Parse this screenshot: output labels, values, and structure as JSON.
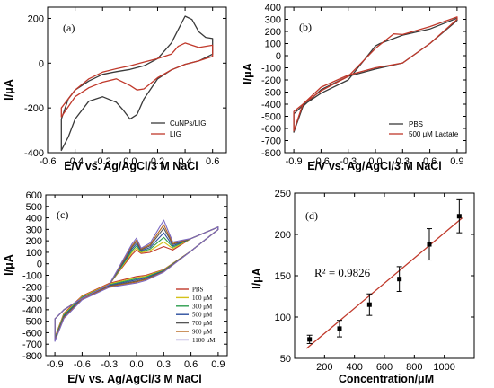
{
  "chart_data": [
    {
      "panel": "(a)",
      "type": "line",
      "xlabel": "E/V vs. Ag/AgCl/3 M NaCl",
      "ylabel": "I/μA",
      "xlim": [
        -0.6,
        0.7
      ],
      "ylim": [
        -400,
        250
      ],
      "xticks": [
        -0.6,
        -0.4,
        -0.2,
        0.0,
        0.2,
        0.4,
        0.6
      ],
      "xtick_labels": [
        "-0.6",
        "-0.4",
        "-0.2",
        "0.0",
        "0.2",
        "0.4",
        "0.6"
      ],
      "yticks": [
        -400,
        -200,
        0,
        200
      ],
      "ytick_labels": [
        "-400",
        "-200",
        "0",
        "200"
      ],
      "legend_position": "bottom-right",
      "series": [
        {
          "name": "CuNPs/LIG",
          "color": "#3a3a3a",
          "x": [
            -0.5,
            -0.45,
            -0.4,
            -0.3,
            -0.2,
            -0.1,
            0.0,
            0.1,
            0.2,
            0.3,
            0.35,
            0.4,
            0.45,
            0.5,
            0.55,
            0.6,
            0.6,
            0.5,
            0.4,
            0.3,
            0.2,
            0.1,
            0.05,
            0.0,
            -0.05,
            -0.1,
            -0.2,
            -0.3,
            -0.4,
            -0.45,
            -0.5
          ],
          "y": [
            -250,
            -160,
            -120,
            -80,
            -50,
            -38,
            -28,
            -12,
            20,
            90,
            150,
            210,
            195,
            140,
            115,
            110,
            40,
            10,
            -5,
            -30,
            -70,
            -160,
            -230,
            -250,
            -210,
            -175,
            -150,
            -170,
            -250,
            -330,
            -390
          ]
        },
        {
          "name": "LIG",
          "color": "#c0392b",
          "x": [
            -0.5,
            -0.4,
            -0.3,
            -0.2,
            -0.1,
            0.0,
            0.1,
            0.2,
            0.3,
            0.35,
            0.4,
            0.5,
            0.6,
            0.6,
            0.5,
            0.4,
            0.3,
            0.2,
            0.1,
            0.05,
            0.0,
            -0.1,
            -0.2,
            -0.3,
            -0.4,
            -0.5
          ],
          "y": [
            -200,
            -120,
            -70,
            -40,
            -25,
            -12,
            5,
            20,
            40,
            75,
            90,
            70,
            80,
            30,
            10,
            -5,
            -30,
            -65,
            -115,
            -120,
            -100,
            -70,
            -85,
            -110,
            -150,
            -240
          ]
        }
      ]
    },
    {
      "panel": "(b)",
      "type": "line",
      "xlabel": "E/V vs. Ag/AgCl/3 M NaCl",
      "ylabel": "I/μA",
      "xlim": [
        -1.0,
        1.0
      ],
      "ylim": [
        -800,
        400
      ],
      "xticks": [
        -0.9,
        -0.6,
        -0.3,
        0.0,
        0.3,
        0.6,
        0.9
      ],
      "xtick_labels": [
        "-0.9",
        "-0.6",
        "-0.3",
        "0.0",
        "0.3",
        "0.6",
        "0.9"
      ],
      "yticks": [
        -800,
        -700,
        -600,
        -500,
        -400,
        -300,
        -200,
        -100,
        0,
        100,
        200,
        300,
        400
      ],
      "ytick_labels": [
        "-800",
        "-700",
        "-600",
        "-500",
        "-400",
        "-300",
        "-200",
        "-100",
        "0",
        "100",
        "200",
        "300",
        "400"
      ],
      "legend_position": "bottom-right",
      "series": [
        {
          "name": "PBS",
          "color": "#3a3a3a",
          "x": [
            -0.9,
            -0.8,
            -0.6,
            -0.3,
            0.0,
            0.05,
            0.3,
            0.6,
            0.9,
            0.9,
            0.6,
            0.3,
            0.0,
            -0.3,
            -0.6,
            -0.8,
            -0.9
          ],
          "y": [
            -480,
            -410,
            -310,
            -200,
            80,
            100,
            170,
            220,
            310,
            290,
            100,
            -60,
            -110,
            -170,
            -280,
            -420,
            -630
          ]
        },
        {
          "name": "500 μM Lactate",
          "color": "#c0392b",
          "x": [
            -0.9,
            -0.8,
            -0.6,
            -0.3,
            0.0,
            0.1,
            0.2,
            0.3,
            0.6,
            0.9,
            0.9,
            0.6,
            0.3,
            0.0,
            -0.3,
            -0.6,
            -0.8,
            -0.9
          ],
          "y": [
            -460,
            -400,
            -290,
            -170,
            60,
            120,
            180,
            175,
            240,
            320,
            300,
            100,
            -60,
            -100,
            -160,
            -260,
            -400,
            -620
          ]
        }
      ]
    },
    {
      "panel": "(c)",
      "type": "line",
      "xlabel": "E/V vs. Ag/AgCl/3 M NaCl",
      "ylabel": "I/μA",
      "xlim": [
        -1.0,
        1.0
      ],
      "ylim": [
        -800,
        600
      ],
      "xticks": [
        -0.9,
        -0.6,
        -0.3,
        0.0,
        0.3,
        0.6,
        0.9
      ],
      "xtick_labels": [
        "-0.9",
        "-0.6",
        "-0.3",
        "0.0",
        "0.3",
        "0.6",
        "0.9"
      ],
      "yticks": [
        -800,
        -700,
        -600,
        -500,
        -400,
        -300,
        -200,
        -100,
        0,
        100,
        200,
        300,
        400,
        500,
        600
      ],
      "ytick_labels": [
        "-800",
        "-700",
        "-600",
        "-500",
        "-400",
        "-300",
        "-200",
        "-100",
        "0",
        "100",
        "200",
        "300",
        "400",
        "500",
        "600"
      ],
      "legend_position": "bottom-right",
      "series": [
        {
          "name": "PBS",
          "color": "#c0392b",
          "peak": 0
        },
        {
          "name": "100 μM",
          "color": "#d4c21a",
          "peak": 40
        },
        {
          "name": "300 μM",
          "color": "#2e9e4f",
          "peak": 80
        },
        {
          "name": "500 μM",
          "color": "#2c4f9e",
          "peak": 120
        },
        {
          "name": "700 μM",
          "color": "#555555",
          "peak": 160
        },
        {
          "name": "900 μM",
          "color": "#b5651d",
          "peak": 190
        },
        {
          "name": "1100 μM",
          "color": "#7a68c2",
          "peak": 230
        }
      ]
    },
    {
      "panel": "(d)",
      "type": "scatter",
      "xlabel": "Concentration/μM",
      "ylabel": "I/μA",
      "xlim": [
        0,
        1200
      ],
      "ylim": [
        50,
        250
      ],
      "xticks": [
        200,
        400,
        600,
        800,
        1000
      ],
      "xtick_labels": [
        "200",
        "400",
        "600",
        "800",
        "1000"
      ],
      "yticks": [
        50,
        100,
        150,
        200,
        250
      ],
      "ytick_labels": [
        "50",
        "100",
        "150",
        "200",
        "250"
      ],
      "annotation": "R² = 0.9826",
      "series": [
        {
          "name": "",
          "color": "#000000",
          "x": [
            100,
            300,
            500,
            700,
            900,
            1100
          ],
          "y": [
            73,
            86,
            115,
            146,
            188,
            222
          ],
          "err": [
            5,
            10,
            13,
            15,
            19,
            20
          ]
        }
      ],
      "fit": {
        "color": "#c0392b",
        "x": [
          80,
          1120
        ],
        "y": [
          62,
          220
        ]
      }
    }
  ]
}
